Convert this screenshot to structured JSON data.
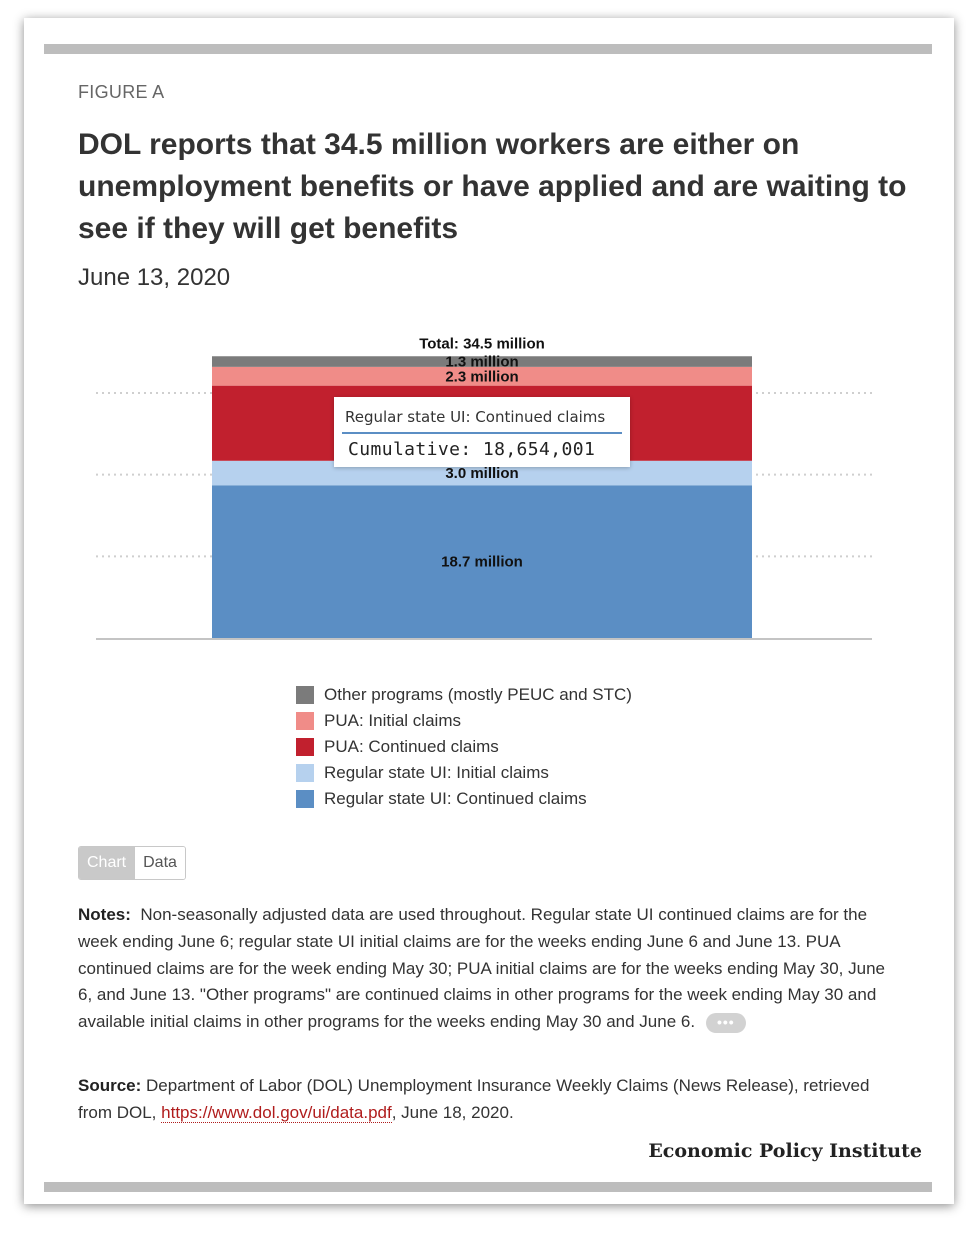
{
  "figure_label": "FIGURE A",
  "title": "DOL reports that 34.5 million workers are either on unemployment benefits or have applied and are waiting to see if they will get benefits",
  "date": "June 13, 2020",
  "chart_data": {
    "type": "bar",
    "stacked": true,
    "total_label": "Total: 34.5 million",
    "ylim": [
      0,
      36
    ],
    "grid": true,
    "legend_placement": "bottom",
    "series": [
      {
        "name": "Regular state UI: Continued claims",
        "value": 18.7,
        "label": "18.7 million",
        "color": "#5b8ec4"
      },
      {
        "name": "Regular state UI: Initial claims",
        "value": 3.0,
        "label": "3.0 million",
        "color": "#b6d1ee"
      },
      {
        "name": "PUA: Continued claims",
        "value": 9.2,
        "label": "",
        "color": "#c1202e"
      },
      {
        "name": "PUA: Initial claims",
        "value": 2.3,
        "label": "2.3 million",
        "color": "#f08c88"
      },
      {
        "name": "Other programs (mostly PEUC and STC)",
        "value": 1.3,
        "label": "1.3 million",
        "color": "#7b7b7b"
      }
    ],
    "tooltip": {
      "series": "Regular state UI: Continued claims",
      "text": "Cumulative: 18,654,001"
    }
  },
  "legend_order": [
    4,
    3,
    2,
    1,
    0
  ],
  "toggle": {
    "chart": "Chart",
    "data": "Data"
  },
  "notes": {
    "label": "Notes:",
    "text": "Non-seasonally adjusted data are used throughout. Regular state UI continued claims are for the week ending June 6; regular state UI initial claims are for the weeks ending June 6 and June 13. PUA continued claims are for the week ending May 30; PUA initial claims are for the weeks ending May 30, June 6, and June 13. \"Other programs\" are continued claims in other programs for the week ending May 30 and available initial claims in other programs for the weeks ending May  30 and June 6.",
    "more": "•••"
  },
  "source": {
    "label": "Source:",
    "text_before": "Department of Labor (DOL) Unemployment Insurance Weekly Claims (News Release), retrieved from DOL,",
    "link": "https://www.dol.gov/ui/data.pdf",
    "text_after": ", June 18, 2020."
  },
  "brand": "Economic Policy Institute"
}
